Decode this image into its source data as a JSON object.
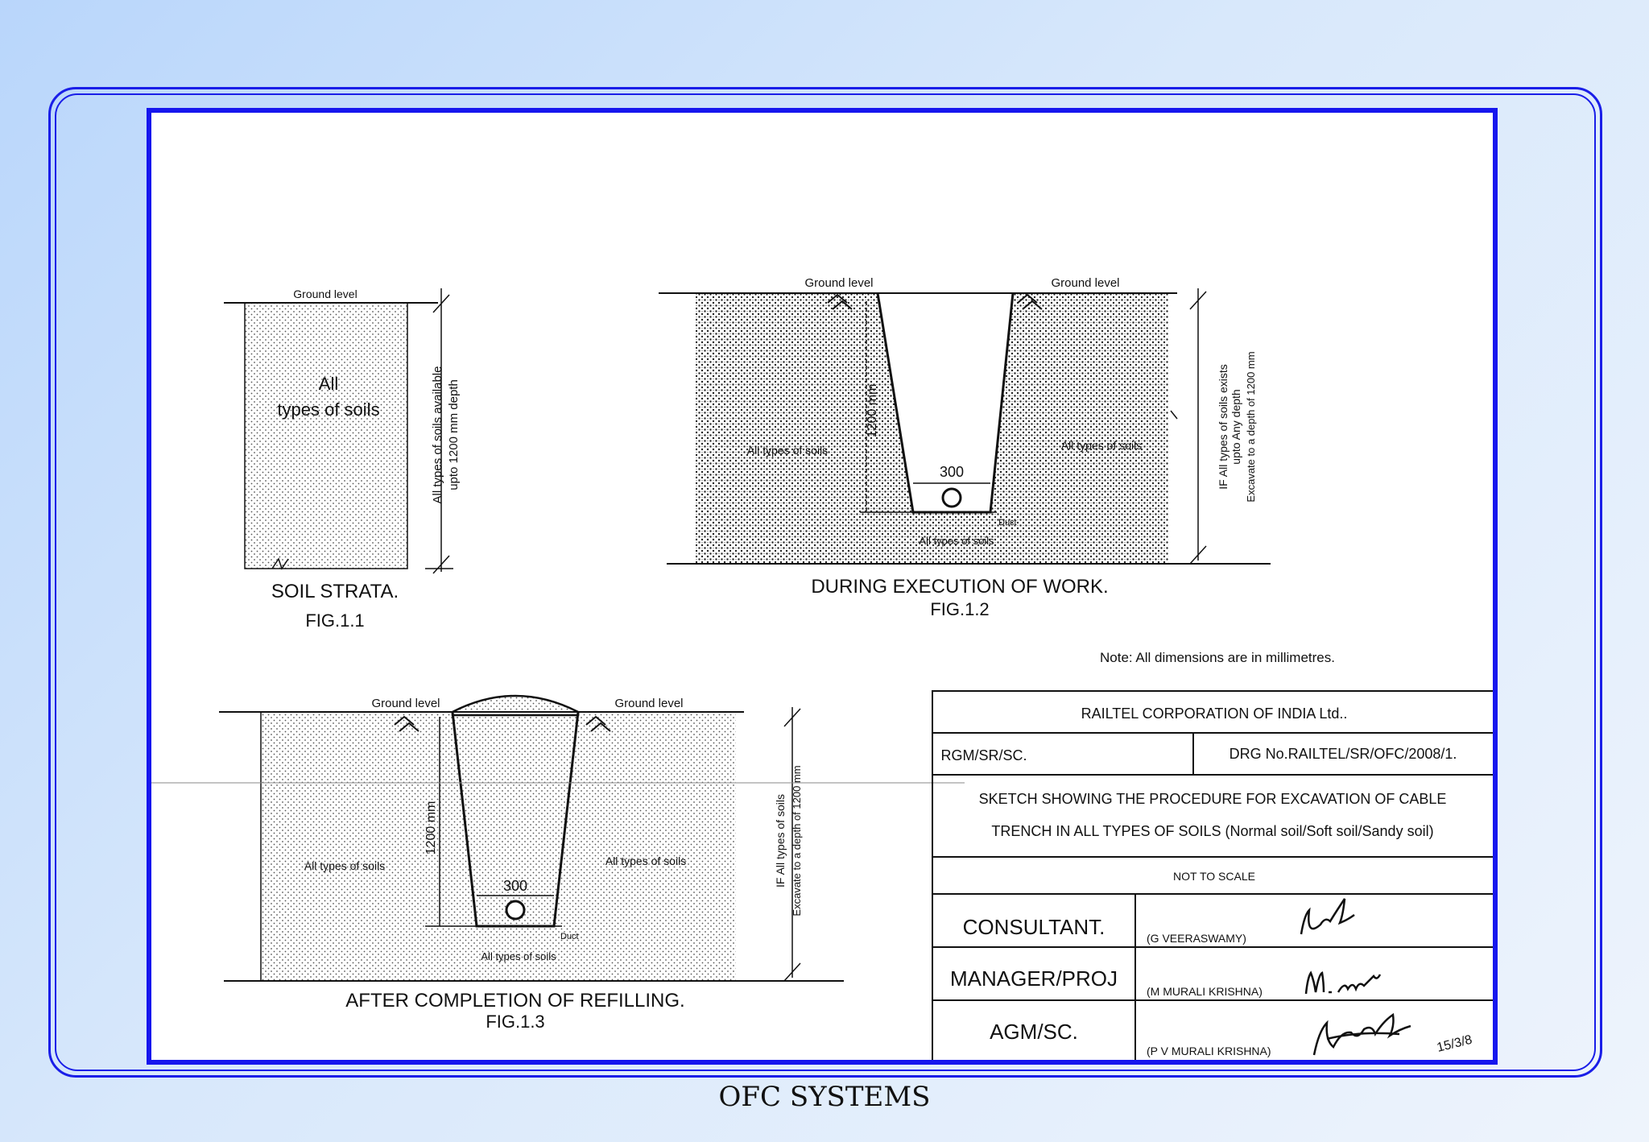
{
  "figures": {
    "fig1": {
      "ground_label": "Ground level",
      "fill_line1": "All",
      "fill_line2": "types of soils",
      "side_line1": "All types of soils available",
      "side_line2": "upto 1200 mm depth",
      "caption": "SOIL STRATA.",
      "number": "FIG.1.1"
    },
    "fig2": {
      "ground_left": "Ground level",
      "ground_right": "Ground level",
      "depth_label": "1200 mm",
      "width_label": "300",
      "left_soil": "All types of soils",
      "right_soil": "All types of soils",
      "bottom_soil": "All types of soils",
      "duct_label": "Duct",
      "side_line1": "IF All types of soils exists",
      "side_line2": "upto Any depth",
      "side_line3": "Excavate to a depth of 1200 mm",
      "caption": "DURING EXECUTION OF WORK.",
      "number": "FIG.1.2"
    },
    "fig3": {
      "ground_left": "Ground level",
      "ground_right": "Ground level",
      "depth_label": "1200 mm",
      "width_label": "300",
      "left_soil": "All types of soils",
      "right_soil": "All types of soils",
      "bottom_soil": "All types of soils",
      "duct_label": "Duct",
      "side_line1": "IF All types of soils",
      "side_line2": "Excavate to a depth of 1200 mm",
      "caption": "AFTER COMPLETION OF REFILLING.",
      "number": "FIG.1.3"
    }
  },
  "note": "Note: All dimensions are in millimetres.",
  "title_block": {
    "org": "RAILTEL CORPORATION OF INDIA Ltd..",
    "ref_left": "RGM/SR/SC.",
    "drg_no": "DRG No.RAILTEL/SR/OFC/2008/1.",
    "sketch_line1": "SKETCH SHOWING THE PROCEDURE FOR EXCAVATION OF CABLE",
    "sketch_line2": "TRENCH IN ALL TYPES OF SOILS (Normal soil/Soft soil/Sandy soil)",
    "scale": "NOT TO SCALE",
    "rows": [
      {
        "role": "CONSULTANT.",
        "name": "(G VEERASWAMY)"
      },
      {
        "role": "MANAGER/PROJ",
        "name": "(M MURALI KRISHNA)"
      },
      {
        "role": "AGM/SC.",
        "name": "(P V MURALI KRISHNA)"
      }
    ],
    "date": "15/3/8"
  },
  "footer": "OFC SYSTEMS",
  "colors": {
    "frame": "#1a1ee8",
    "sheet_border": "#1616ee"
  }
}
